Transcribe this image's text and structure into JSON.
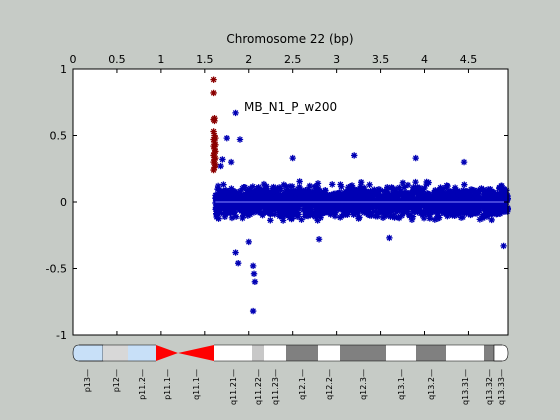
{
  "chart_data": {
    "type": "scatter",
    "title": "Chromosome 22 (bp)",
    "annotation": "MB_N1_P_w200",
    "xlabel": "",
    "ylabel": "",
    "x_axis_position": "top",
    "xlim": [
      0,
      4.95
    ],
    "ylim": [
      -1,
      1
    ],
    "x_ticks": [
      0,
      0.5,
      1,
      1.5,
      2,
      2.5,
      3,
      3.5,
      4,
      4.5
    ],
    "x_tick_labels": [
      "0",
      "0.5",
      "1",
      "1.5",
      "2",
      "2.5",
      "3",
      "3.5",
      "4",
      "4.5"
    ],
    "y_ticks": [
      1,
      0.5,
      0,
      -0.5,
      -1
    ],
    "y_tick_labels": [
      "1",
      "0.5",
      "0",
      "-0.5",
      "-1"
    ],
    "grid": false,
    "baseline_y": 0,
    "colors": {
      "background": "#c6cbc6",
      "plot_bg": "#ffffff",
      "main_series": "#0000b4",
      "highlight_series": "#8b0000",
      "baseline": "#8888ff"
    },
    "series": [
      {
        "role": "highlight",
        "x": [
          1.6,
          1.6,
          1.61,
          1.6,
          1.61,
          1.6,
          1.61,
          1.62,
          1.6,
          1.61,
          1.62,
          1.6,
          1.61,
          1.62,
          1.61,
          1.6,
          1.62,
          1.61,
          1.6,
          1.62,
          1.61,
          1.6
        ],
        "y": [
          0.92,
          0.82,
          0.63,
          0.62,
          0.61,
          0.53,
          0.5,
          0.48,
          0.47,
          0.45,
          0.43,
          0.42,
          0.4,
          0.38,
          0.37,
          0.35,
          0.33,
          0.32,
          0.3,
          0.28,
          0.26,
          0.24
        ]
      },
      {
        "role": "main",
        "region": [
          1.62,
          4.95
        ],
        "band_center": 0,
        "band_halfwidth": 0.17,
        "x": [
          1.75,
          1.85,
          1.9,
          1.7,
          1.68,
          1.8,
          2.05,
          2.07,
          2.06,
          2.05,
          1.85,
          1.88,
          2.0,
          2.5,
          3.2,
          3.9,
          4.45,
          4.9,
          2.8,
          3.6
        ],
        "y": [
          0.48,
          0.67,
          0.47,
          0.32,
          0.27,
          0.3,
          -0.82,
          -0.6,
          -0.54,
          -0.48,
          -0.38,
          -0.46,
          -0.3,
          0.33,
          0.35,
          0.33,
          0.3,
          -0.33,
          -0.28,
          -0.27
        ]
      }
    ]
  },
  "ideogram": {
    "bands": [
      "p13",
      "p12",
      "p11.2",
      "p11.1",
      "q11.1",
      "q11.21",
      "q11.22",
      "q11.23",
      "q12.1",
      "q12.2",
      "q12.3",
      "q13.1",
      "q13.2",
      "q13.31",
      "q13.32",
      "q13.33"
    ]
  }
}
